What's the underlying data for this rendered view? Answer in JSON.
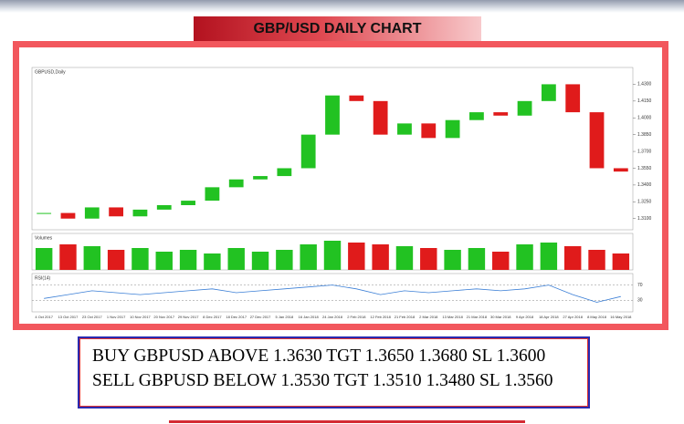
{
  "header": {
    "title": "GBP/USD DAILY CHART"
  },
  "chart_data": [
    {
      "type": "candlestick",
      "title": "GBPUSD,Daily",
      "categories": [
        "4 Oct 2017",
        "13 Oct 2017",
        "23 Oct 2017",
        "1 Nov 2017",
        "10 Nov 2017",
        "20 Nov 2017",
        "29 Nov 2017",
        "8 Dec 2017",
        "18 Dec 2017",
        "27 Dec 2017",
        "5 Jan 2018",
        "16 Jan 2018",
        "24 Jan 2018",
        "2 Feb 2018",
        "12 Feb 2018",
        "21 Feb 2018",
        "2 Mar 2018",
        "13 Mar 2018",
        "21 Mar 2018",
        "30 Mar 2018",
        "9 Apr 2018",
        "18 Apr 2018",
        "27 Apr 2018",
        "8 May 2018",
        "16 May 2018"
      ],
      "values": [
        1.315,
        1.31,
        1.32,
        1.312,
        1.318,
        1.322,
        1.326,
        1.338,
        1.345,
        1.348,
        1.355,
        1.385,
        1.42,
        1.415,
        1.385,
        1.395,
        1.382,
        1.398,
        1.405,
        1.402,
        1.415,
        1.43,
        1.405,
        1.355,
        1.352
      ],
      "up_color": "#22c222",
      "down_color": "#e01b1b",
      "ylim": [
        1.3,
        1.445
      ],
      "yticks": [
        {
          "value": 1.31,
          "label": "1.3100"
        },
        {
          "value": 1.325,
          "label": "1.3250"
        },
        {
          "value": 1.34,
          "label": "1.3400"
        },
        {
          "value": 1.355,
          "label": "1.3550"
        },
        {
          "value": 1.37,
          "label": "1.3700"
        },
        {
          "value": 1.385,
          "label": "1.3850"
        },
        {
          "value": 1.4,
          "label": "1.4000"
        },
        {
          "value": 1.415,
          "label": "1.4150"
        },
        {
          "value": 1.43,
          "label": "1.4300"
        }
      ]
    },
    {
      "type": "bar",
      "title": "Volumes",
      "values": [
        60,
        70,
        65,
        55,
        60,
        50,
        55,
        45,
        60,
        50,
        55,
        70,
        80,
        75,
        70,
        65,
        60,
        55,
        60,
        50,
        70,
        75,
        65,
        55,
        45
      ],
      "ylim": [
        0,
        100
      ]
    },
    {
      "type": "line",
      "title": "RSI(14)",
      "color": "#3b7fd6",
      "values": [
        35,
        45,
        55,
        50,
        45,
        50,
        55,
        60,
        50,
        55,
        60,
        65,
        70,
        60,
        45,
        55,
        50,
        55,
        60,
        55,
        60,
        70,
        45,
        25,
        40
      ],
      "ylim": [
        0,
        100
      ],
      "yticks": [
        30,
        70
      ]
    }
  ],
  "signals": [
    "BUY GBPUSD ABOVE 1.3630 TGT 1.3650 1.3680 SL 1.3600",
    "SELL GBPUSD BELOW 1.3530 TGT 1.3510 1.3480 SL 1.3560"
  ]
}
